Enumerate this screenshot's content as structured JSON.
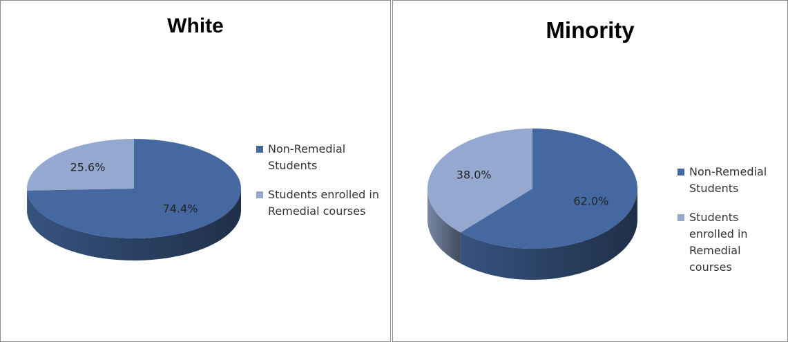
{
  "chart_data": [
    {
      "type": "pie",
      "title": "White",
      "categories": [
        "Non-Remedial Students",
        "Students enrolled in Remedial courses"
      ],
      "values": [
        74.4,
        25.6
      ],
      "value_labels": [
        "74.4%",
        "25.6%"
      ],
      "colors": [
        "#44689f",
        "#95a9d0"
      ]
    },
    {
      "type": "pie",
      "title": "Minority",
      "categories": [
        "Non-Remedial Students",
        "Students enrolled in Remedial courses"
      ],
      "values": [
        62.0,
        38.0
      ],
      "value_labels": [
        "62.0%",
        "38.0%"
      ],
      "colors": [
        "#44689f",
        "#95a9d0"
      ]
    }
  ]
}
